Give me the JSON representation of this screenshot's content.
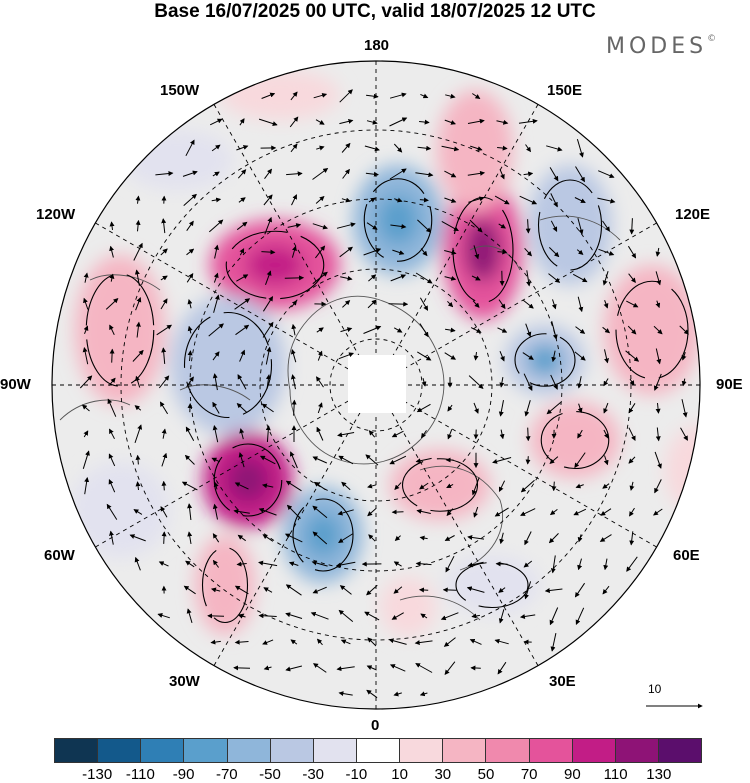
{
  "title": "Base 16/07/2025 00 UTC, valid 18/07/2025 12 UTC",
  "brand": "MODES",
  "brand_mark": "©",
  "longitude_labels": [
    "180",
    "150E",
    "120E",
    "90E",
    "60E",
    "30E",
    "0",
    "30W",
    "60W",
    "90W",
    "120W",
    "150W"
  ],
  "reference_vector_label": "10",
  "colorbar": {
    "colors": [
      "#0f3552",
      "#13598b",
      "#2f7fb5",
      "#5a9fcc",
      "#8fb6da",
      "#bac8e3",
      "#e2e2ef",
      "#ffffff",
      "#f8d9dd",
      "#f5b5c3",
      "#f089ad",
      "#e4539b",
      "#c21d86",
      "#8e1376",
      "#5b0e6c"
    ],
    "ticks": [
      "-130",
      "-110",
      "-90",
      "-70",
      "-50",
      "-30",
      "-10",
      "10",
      "30",
      "50",
      "70",
      "90",
      "110",
      "130"
    ]
  },
  "anomaly_centers": [
    {
      "level": 40
    },
    {
      "level": 70
    },
    {
      "level": -60
    },
    {
      "level": 80
    },
    {
      "level": -40
    },
    {
      "level": 40
    },
    {
      "level": -50
    },
    {
      "level": 30
    },
    {
      "level": -40
    },
    {
      "level": 90
    },
    {
      "level": -60
    },
    {
      "level": 30
    },
    {
      "level": 40
    },
    {
      "level": -30
    },
    {
      "level": 20
    },
    {
      "level": -20
    },
    {
      "level": 30
    },
    {
      "level": 20
    },
    {
      "level": -30
    },
    {
      "level": 20
    }
  ]
}
